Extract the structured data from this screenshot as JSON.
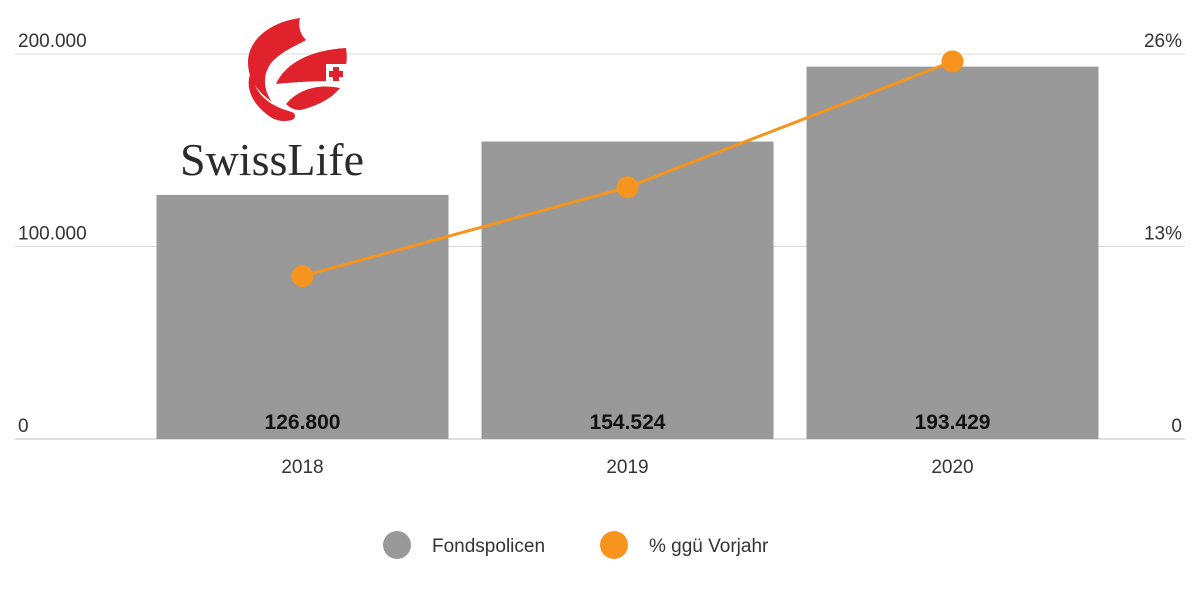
{
  "logo": {
    "text": "SwissLife",
    "brand_color": "#e0222d"
  },
  "colors": {
    "bar": "#999999",
    "line": "#f7941d",
    "grid": "#d9d9d9",
    "text": "#333333"
  },
  "chart_data": {
    "type": "bar",
    "categories": [
      "2018",
      "2019",
      "2020"
    ],
    "series": [
      {
        "name": "Fondspolicen",
        "type": "bar",
        "axis": "left",
        "values": [
          126800,
          154524,
          193429
        ],
        "value_labels": [
          "126.800",
          "154.524",
          "193.429"
        ]
      },
      {
        "name": "% ggü Vorjahr",
        "type": "line",
        "axis": "right",
        "values": [
          11,
          17,
          25.5
        ]
      }
    ],
    "y_left": {
      "ylim": [
        0,
        200000
      ],
      "ticks": [
        0,
        100000,
        200000
      ],
      "tick_labels": [
        "0",
        "100.000",
        "200.000"
      ]
    },
    "y_right": {
      "ylim": [
        0,
        26
      ],
      "ticks": [
        0,
        13,
        26
      ],
      "tick_labels": [
        "0",
        "13%",
        "26%"
      ]
    },
    "grid": true,
    "legend": {
      "placement": "bottom",
      "entries": [
        "Fondspolicen",
        "% ggü Vorjahr"
      ]
    }
  }
}
